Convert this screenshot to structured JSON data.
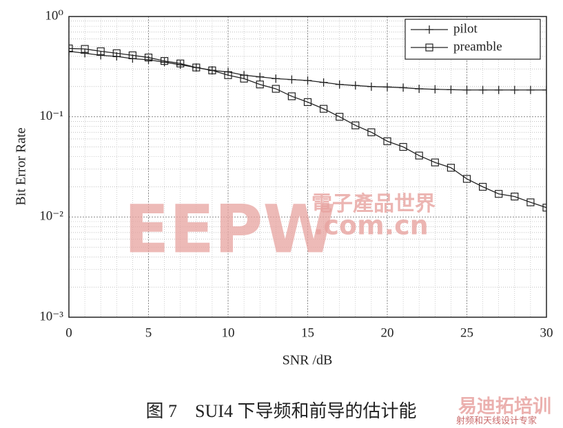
{
  "chart_data": {
    "type": "line",
    "caption": "图 7　SUI4 下导频和前导的估计能",
    "xlabel": "SNR /dB",
    "ylabel": "Bit Error Rate",
    "x": [
      0,
      1,
      2,
      3,
      4,
      5,
      6,
      7,
      8,
      9,
      10,
      11,
      12,
      13,
      14,
      15,
      16,
      17,
      18,
      19,
      20,
      21,
      22,
      23,
      24,
      25,
      26,
      27,
      28,
      29,
      30
    ],
    "series": [
      {
        "name": "pilot",
        "color": "#222222",
        "marker": "plus",
        "values": [
          0.45,
          0.43,
          0.41,
          0.4,
          0.38,
          0.37,
          0.35,
          0.33,
          0.31,
          0.29,
          0.28,
          0.26,
          0.25,
          0.24,
          0.235,
          0.23,
          0.22,
          0.21,
          0.205,
          0.2,
          0.198,
          0.195,
          0.19,
          0.188,
          0.186,
          0.185,
          0.185,
          0.185,
          0.185,
          0.185,
          0.185
        ]
      },
      {
        "name": "preamble",
        "color": "#222222",
        "marker": "square",
        "values": [
          0.48,
          0.475,
          0.45,
          0.43,
          0.41,
          0.39,
          0.36,
          0.34,
          0.31,
          0.29,
          0.26,
          0.24,
          0.21,
          0.19,
          0.16,
          0.14,
          0.12,
          0.1,
          0.082,
          0.07,
          0.057,
          0.05,
          0.041,
          0.035,
          0.031,
          0.024,
          0.02,
          0.017,
          0.016,
          0.014,
          0.0124
        ]
      }
    ],
    "xlim": [
      0,
      30
    ],
    "xticks": [
      0,
      5,
      10,
      15,
      20,
      25,
      30
    ],
    "ylim": [
      0.001,
      1
    ],
    "yticks": [
      {
        "value": 0.001,
        "label": "10⁻³"
      },
      {
        "value": 0.01,
        "label": "10⁻²"
      },
      {
        "value": 0.1,
        "label": "10⁻¹"
      },
      {
        "value": 1,
        "label": "10⁰"
      }
    ],
    "log_y": true,
    "grid": true,
    "legend": "upper right",
    "watermarks": [
      "EEPW",
      "電子產品世界",
      ".com.cn",
      "易迪拓培训",
      "射频和天线设计专家"
    ]
  }
}
